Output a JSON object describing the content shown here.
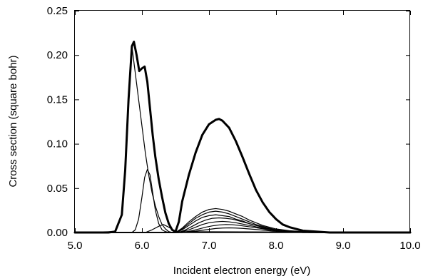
{
  "chart_data": {
    "type": "line",
    "title": "",
    "xlabel": "Incident electron energy (eV)",
    "ylabel": "Cross section (square bohr)",
    "xlim": [
      5.0,
      10.0
    ],
    "ylim": [
      0.0,
      0.25
    ],
    "xticks": [
      5.0,
      6.0,
      7.0,
      8.0,
      9.0,
      10.0
    ],
    "xtick_labels": [
      "5.0",
      "6.0",
      "7.0",
      "8.0",
      "9.0",
      "10.0"
    ],
    "yticks": [
      0.0,
      0.05,
      0.1,
      0.15,
      0.2,
      0.25
    ],
    "ytick_labels": [
      "0.00",
      "0.05",
      "0.10",
      "0.15",
      "0.20",
      "0.25"
    ],
    "grid": false,
    "legend": "none",
    "line_color": "#000000",
    "series": [
      {
        "bold": true,
        "x": [
          5.0,
          5.5,
          5.6,
          5.7,
          5.75,
          5.8,
          5.85,
          5.88,
          5.92,
          5.96,
          6.0,
          6.04,
          6.08,
          6.12,
          6.16,
          6.2,
          6.25,
          6.3,
          6.35,
          6.4,
          6.45,
          6.5,
          6.55,
          6.6,
          6.7,
          6.8,
          6.9,
          7.0,
          7.1,
          7.15,
          7.2,
          7.3,
          7.4,
          7.5,
          7.6,
          7.7,
          7.8,
          7.9,
          8.0,
          8.1,
          8.2,
          8.4,
          8.6,
          8.8,
          9.0,
          10.0
        ],
        "y": [
          0.0,
          0.0,
          0.001,
          0.02,
          0.07,
          0.15,
          0.21,
          0.215,
          0.2,
          0.182,
          0.185,
          0.187,
          0.17,
          0.14,
          0.11,
          0.085,
          0.06,
          0.04,
          0.022,
          0.01,
          0.003,
          0.001,
          0.012,
          0.035,
          0.065,
          0.09,
          0.11,
          0.122,
          0.127,
          0.128,
          0.126,
          0.118,
          0.103,
          0.085,
          0.066,
          0.048,
          0.034,
          0.023,
          0.015,
          0.009,
          0.006,
          0.002,
          0.001,
          0.0,
          0.0,
          0.0
        ]
      },
      {
        "x": [
          5.0,
          5.6,
          5.7,
          5.75,
          5.8,
          5.85,
          5.9,
          5.95,
          6.0,
          6.05,
          6.1,
          6.15,
          6.2,
          6.25,
          6.3,
          6.35,
          6.4,
          6.45,
          6.5,
          10.0
        ],
        "y": [
          0.0,
          0.001,
          0.02,
          0.07,
          0.15,
          0.21,
          0.18,
          0.15,
          0.12,
          0.09,
          0.065,
          0.045,
          0.03,
          0.018,
          0.009,
          0.004,
          0.001,
          0.0,
          0.0,
          0.0
        ]
      },
      {
        "x": [
          5.0,
          5.85,
          5.9,
          5.95,
          6.0,
          6.04,
          6.08,
          6.12,
          6.16,
          6.2,
          6.25,
          6.3,
          6.35,
          6.4,
          6.5,
          10.0
        ],
        "y": [
          0.0,
          0.0,
          0.003,
          0.015,
          0.04,
          0.062,
          0.071,
          0.065,
          0.045,
          0.025,
          0.01,
          0.003,
          0.001,
          0.0,
          0.0,
          0.0
        ]
      },
      {
        "x": [
          5.0,
          6.05,
          6.15,
          6.25,
          6.32,
          6.4,
          6.5,
          10.0
        ],
        "y": [
          0.0,
          0.0,
          0.003,
          0.007,
          0.009,
          0.006,
          0.001,
          0.0
        ]
      },
      {
        "x": [
          5.0,
          6.5,
          6.6,
          6.7,
          6.8,
          6.9,
          7.0,
          7.1,
          7.2,
          7.3,
          7.4,
          7.5,
          7.6,
          7.7,
          7.8,
          7.9,
          8.0,
          8.1,
          8.2,
          8.4,
          8.6,
          10.0
        ],
        "y": [
          0.0,
          0.0,
          0.005,
          0.012,
          0.018,
          0.023,
          0.026,
          0.027,
          0.026,
          0.024,
          0.021,
          0.018,
          0.014,
          0.011,
          0.008,
          0.006,
          0.004,
          0.003,
          0.002,
          0.001,
          0.0,
          0.0
        ]
      },
      {
        "x": [
          5.0,
          6.5,
          6.6,
          6.7,
          6.8,
          6.9,
          7.0,
          7.1,
          7.2,
          7.3,
          7.4,
          7.5,
          7.6,
          7.7,
          7.8,
          7.9,
          8.0,
          8.1,
          8.2,
          8.4,
          8.6,
          10.0
        ],
        "y": [
          0.0,
          0.0,
          0.004,
          0.01,
          0.016,
          0.02,
          0.023,
          0.024,
          0.023,
          0.021,
          0.018,
          0.015,
          0.012,
          0.009,
          0.007,
          0.005,
          0.003,
          0.002,
          0.0015,
          0.0008,
          0.0,
          0.0
        ]
      },
      {
        "x": [
          5.0,
          6.5,
          6.6,
          6.7,
          6.8,
          6.9,
          7.0,
          7.1,
          7.2,
          7.3,
          7.4,
          7.5,
          7.6,
          7.7,
          7.8,
          7.9,
          8.0,
          8.1,
          8.2,
          8.4,
          8.6,
          10.0
        ],
        "y": [
          0.0,
          0.0,
          0.003,
          0.008,
          0.013,
          0.017,
          0.019,
          0.02,
          0.019,
          0.018,
          0.015,
          0.013,
          0.01,
          0.008,
          0.006,
          0.004,
          0.003,
          0.002,
          0.0012,
          0.0006,
          0.0,
          0.0
        ]
      },
      {
        "x": [
          5.0,
          6.55,
          6.65,
          6.75,
          6.85,
          6.95,
          7.05,
          7.15,
          7.25,
          7.35,
          7.45,
          7.55,
          7.65,
          7.75,
          7.85,
          7.95,
          8.05,
          8.15,
          8.3,
          8.5,
          10.0
        ],
        "y": [
          0.0,
          0.0,
          0.003,
          0.007,
          0.011,
          0.014,
          0.016,
          0.0165,
          0.016,
          0.015,
          0.013,
          0.011,
          0.009,
          0.007,
          0.005,
          0.0035,
          0.0025,
          0.0015,
          0.0008,
          0.0,
          0.0
        ]
      },
      {
        "x": [
          5.0,
          6.55,
          6.7,
          6.8,
          6.9,
          7.0,
          7.1,
          7.2,
          7.3,
          7.4,
          7.5,
          7.6,
          7.7,
          7.8,
          7.9,
          8.0,
          8.1,
          8.3,
          8.5,
          10.0
        ],
        "y": [
          0.0,
          0.0,
          0.003,
          0.006,
          0.009,
          0.011,
          0.012,
          0.0125,
          0.012,
          0.011,
          0.0095,
          0.008,
          0.0065,
          0.005,
          0.0035,
          0.0025,
          0.0015,
          0.0008,
          0.0,
          0.0
        ]
      },
      {
        "x": [
          5.0,
          6.6,
          6.75,
          6.85,
          6.95,
          7.05,
          7.15,
          7.25,
          7.35,
          7.45,
          7.55,
          7.65,
          7.75,
          7.85,
          7.95,
          8.05,
          8.2,
          8.4,
          10.0
        ],
        "y": [
          0.0,
          0.0,
          0.002,
          0.004,
          0.006,
          0.0075,
          0.0085,
          0.009,
          0.0088,
          0.008,
          0.007,
          0.006,
          0.0048,
          0.0036,
          0.0026,
          0.0018,
          0.001,
          0.0,
          0.0
        ]
      },
      {
        "x": [
          5.0,
          6.6,
          6.8,
          6.9,
          7.0,
          7.1,
          7.2,
          7.3,
          7.4,
          7.5,
          7.6,
          7.7,
          7.8,
          7.9,
          8.0,
          8.2,
          8.4,
          10.0
        ],
        "y": [
          0.0,
          0.0,
          0.0015,
          0.0025,
          0.0035,
          0.0045,
          0.005,
          0.0052,
          0.005,
          0.0046,
          0.004,
          0.0034,
          0.0027,
          0.002,
          0.0014,
          0.0007,
          0.0,
          0.0
        ]
      }
    ]
  }
}
